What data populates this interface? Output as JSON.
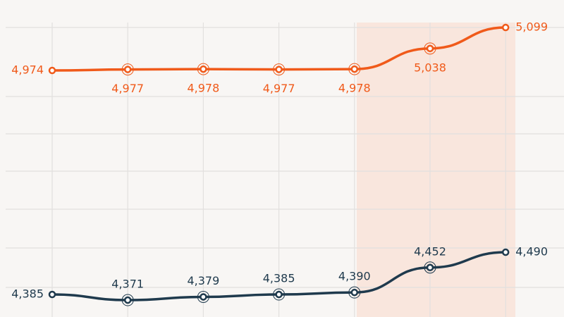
{
  "chart_data": {
    "type": "line",
    "categories": [
      null,
      null,
      null,
      null,
      null,
      null,
      null
    ],
    "series": [
      {
        "color": "#f05a1a",
        "values": [
          4974,
          4977,
          4978,
          4977,
          4978,
          5038,
          5099
        ],
        "value_labels": [
          "4,974",
          "4,977",
          "4,978",
          "4,977",
          "4,978",
          "5,038",
          "5,099"
        ]
      },
      {
        "color": "#1f3a4d",
        "axis": "y2",
        "values": [
          4385,
          4371,
          4379,
          4385,
          4390,
          4452,
          4490
        ],
        "value_labels": [
          "4,385",
          "4,371",
          "4,379",
          "4,385",
          "4,390",
          "4,452",
          "4,490"
        ]
      }
    ],
    "ylim": [
      4257,
      5179
    ],
    "y2lim": [
      4329,
      5117
    ]
  }
}
